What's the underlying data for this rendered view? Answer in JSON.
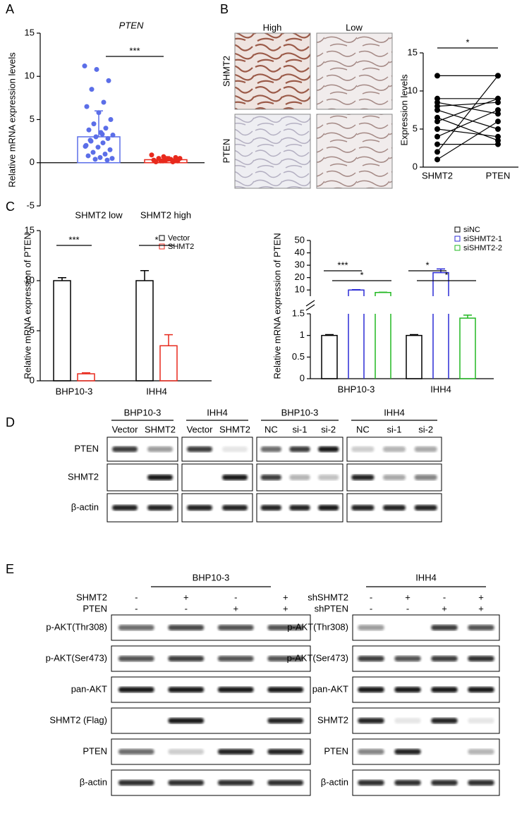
{
  "figure": {
    "panels": [
      "A",
      "B",
      "C",
      "D",
      "E"
    ],
    "ihc": {
      "columns": [
        "High",
        "Low"
      ],
      "rows": [
        "SHMT2",
        "PTEN"
      ]
    },
    "blot_d": {
      "groups": [
        {
          "label": "BHP10-3",
          "lanes": [
            "Vector",
            "SHMT2"
          ]
        },
        {
          "label": "IHH4",
          "lanes": [
            "Vector",
            "SHMT2"
          ]
        },
        {
          "label": "BHP10-3",
          "lanes": [
            "NC",
            "si-1",
            "si-2"
          ]
        },
        {
          "label": "IHH4",
          "lanes": [
            "NC",
            "si-1",
            "si-2"
          ]
        }
      ],
      "rows": [
        "PTEN",
        "SHMT2",
        "β-actin"
      ]
    },
    "blot_e": [
      {
        "title": "BHP10-3",
        "conditions": [
          {
            "label": "SHMT2",
            "signs": [
              "-",
              "+",
              "-",
              "+"
            ]
          },
          {
            "label": "PTEN",
            "signs": [
              "-",
              "-",
              "+",
              "+"
            ]
          }
        ],
        "rows": [
          "p-AKT(Thr308)",
          "p-AKT(Ser473)",
          "pan-AKT",
          "SHMT2 (Flag)",
          "PTEN",
          "β-actin"
        ]
      },
      {
        "title": "IHH4",
        "conditions": [
          {
            "label": "shSHMT2",
            "signs": [
              "-",
              "+",
              "-",
              "+"
            ]
          },
          {
            "label": "shPTEN",
            "signs": [
              "-",
              "-",
              "+",
              "+"
            ]
          }
        ],
        "rows": [
          "p-AKT(Thr308)",
          "p-AKT(Ser473)",
          "pan-AKT",
          "SHMT2",
          "PTEN",
          "β-actin"
        ]
      }
    ]
  },
  "chart_data": [
    {
      "type": "bar",
      "title": "PTEN",
      "ylabel": "Relative mRNA expression levels",
      "categories": [
        "SHMT2 low",
        "SHMT2 high"
      ],
      "values": [
        3,
        0.35
      ],
      "errors": [
        3,
        0.35
      ],
      "colors": [
        "#5b6ee8",
        "#e8291c"
      ],
      "points": [
        [
          11.2,
          10.8,
          9.5,
          8.5,
          7,
          6.5,
          5.8,
          5,
          4.5,
          4,
          3.8,
          3.5,
          3.2,
          3,
          2.8,
          2.5,
          2.3,
          2,
          1.8,
          1.5,
          1.2,
          1,
          0.8,
          0.6,
          0.5,
          0.4,
          0.3,
          2.6,
          3.3,
          1.9
        ],
        [
          0.9,
          0.7,
          0.6,
          0.5,
          0.4,
          0.3,
          0.3,
          0.2,
          0.2,
          0.1,
          0.1,
          0.4,
          0.5,
          0.2,
          0.3
        ]
      ],
      "ylim": [
        -5,
        15
      ],
      "yticks": [
        -5,
        0,
        5,
        10,
        15
      ],
      "annotations": [
        "***"
      ]
    },
    {
      "type": "paired",
      "ylabel": "Expression levels",
      "series": [
        {
          "name": "SHMT2",
          "values": [
            12,
            9,
            8.5,
            8,
            7.5,
            6.5,
            6,
            5,
            4,
            3,
            2,
            1
          ]
        },
        {
          "name": "PTEN",
          "values": [
            12,
            9,
            7,
            8.5,
            5,
            3.5,
            9,
            4,
            7.5,
            3,
            12,
            6
          ]
        }
      ],
      "ylim": [
        0,
        15
      ],
      "yticks": [
        0,
        5,
        10,
        15
      ],
      "annotations": [
        "*"
      ]
    },
    {
      "type": "grouped-bar",
      "ylabel": "Relative mRNA expression of PTEN",
      "categories": [
        "BHP10-3",
        "IHH4"
      ],
      "series": [
        {
          "name": "Vector",
          "color": "#000000",
          "values": [
            10,
            10
          ],
          "errors": [
            0.3,
            1
          ]
        },
        {
          "name": "SHMT2",
          "color": "#e8291c",
          "values": [
            0.7,
            3.5
          ],
          "errors": [
            0.1,
            1.1
          ]
        }
      ],
      "ylim": [
        0,
        15
      ],
      "yticks": [
        0,
        5,
        10,
        15
      ],
      "annotations": [
        "***",
        "*"
      ]
    },
    {
      "type": "broken-bar",
      "ylabel": "Relative mRNA expression of PTEN",
      "categories": [
        "BHP10-3",
        "IHH4"
      ],
      "segments": [
        {
          "ylim": [
            0,
            1.5
          ],
          "yticks": [
            0,
            0.5,
            1,
            1.5
          ]
        },
        {
          "ylim": [
            5,
            50
          ],
          "yticks": [
            10,
            20,
            30,
            40,
            50
          ]
        }
      ],
      "series": [
        {
          "name": "siNC",
          "color": "#000000",
          "values": [
            1,
            1
          ],
          "errors": [
            0.02,
            0.02
          ]
        },
        {
          "name": "siSHMT2-1",
          "color": "#2b2bd6",
          "values": [
            10,
            24
          ],
          "errors": [
            0.3,
            3
          ]
        },
        {
          "name": "siSHMT2-2",
          "color": "#22b822",
          "values": [
            8,
            1.4
          ],
          "errors": [
            0.2,
            0.07
          ]
        }
      ],
      "annotations": [
        [
          "***",
          "*"
        ],
        [
          "*",
          "*"
        ]
      ]
    }
  ]
}
